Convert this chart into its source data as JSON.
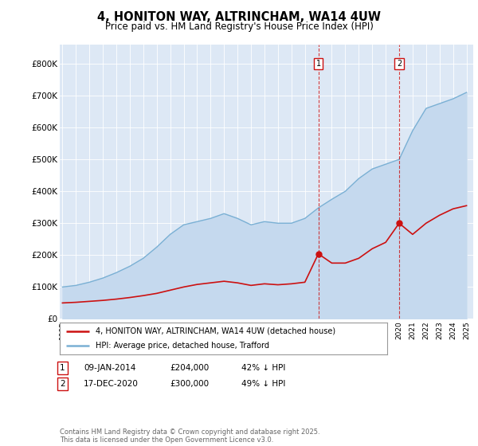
{
  "title_line1": "4, HONITON WAY, ALTRINCHAM, WA14 4UW",
  "title_line2": "Price paid vs. HM Land Registry's House Price Index (HPI)",
  "ylim": [
    0,
    860000
  ],
  "yticks": [
    0,
    100000,
    200000,
    300000,
    400000,
    500000,
    600000,
    700000,
    800000
  ],
  "ytick_labels": [
    "£0",
    "£100K",
    "£200K",
    "£300K",
    "£400K",
    "£500K",
    "£600K",
    "£700K",
    "£800K"
  ],
  "plot_bg_color": "#dde8f5",
  "hpi_line_color": "#7ab0d4",
  "hpi_fill_color": "#c5d9ee",
  "price_color": "#cc1111",
  "vline_color": "#cc1111",
  "marker1_year": 2014,
  "marker2_year": 2020,
  "marker1_price": 204000,
  "marker2_price": 300000,
  "legend_entry1": "4, HONITON WAY, ALTRINCHAM, WA14 4UW (detached house)",
  "legend_entry2": "HPI: Average price, detached house, Trafford",
  "fn1_num": "1",
  "fn1_date": "09-JAN-2014",
  "fn1_price": "£204,000",
  "fn1_pct": "42% ↓ HPI",
  "fn2_num": "2",
  "fn2_date": "17-DEC-2020",
  "fn2_price": "£300,000",
  "fn2_pct": "49% ↓ HPI",
  "copyright_text": "Contains HM Land Registry data © Crown copyright and database right 2025.\nThis data is licensed under the Open Government Licence v3.0.",
  "years": [
    1995,
    1996,
    1997,
    1998,
    1999,
    2000,
    2001,
    2002,
    2003,
    2004,
    2005,
    2006,
    2007,
    2008,
    2009,
    2010,
    2011,
    2012,
    2013,
    2014,
    2015,
    2016,
    2017,
    2018,
    2019,
    2020,
    2021,
    2022,
    2023,
    2024,
    2025
  ],
  "hpi_values": [
    100000,
    105000,
    115000,
    128000,
    145000,
    165000,
    190000,
    225000,
    265000,
    295000,
    305000,
    315000,
    330000,
    315000,
    295000,
    305000,
    300000,
    300000,
    315000,
    348000,
    375000,
    400000,
    440000,
    470000,
    485000,
    500000,
    590000,
    660000,
    675000,
    690000,
    710000
  ],
  "price_values": [
    50000,
    52000,
    55000,
    58000,
    62000,
    67000,
    73000,
    80000,
    90000,
    100000,
    108000,
    113000,
    118000,
    113000,
    105000,
    110000,
    107000,
    110000,
    115000,
    204000,
    175000,
    175000,
    190000,
    220000,
    240000,
    300000,
    265000,
    300000,
    325000,
    345000,
    355000
  ]
}
